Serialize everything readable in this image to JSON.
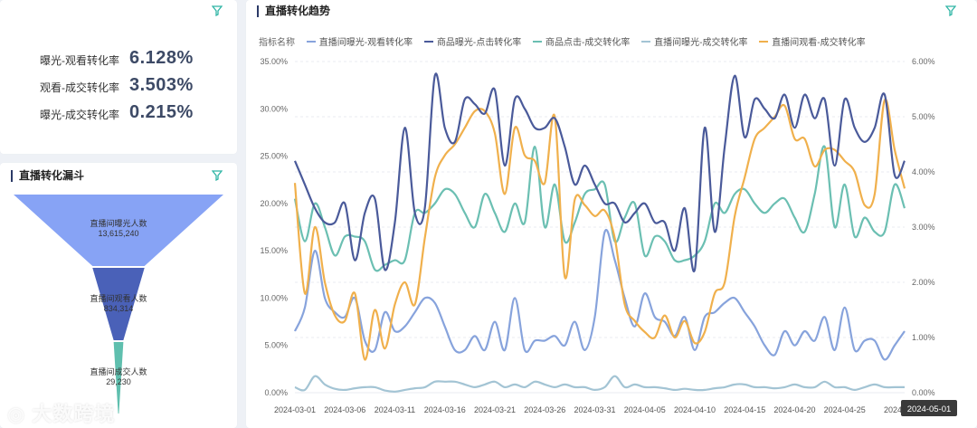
{
  "kpi": {
    "items": [
      {
        "label": "曝光-观看转化率",
        "value": "6.128%"
      },
      {
        "label": "观看-成交转化率",
        "value": "3.503%"
      },
      {
        "label": "曝光-成交转化率",
        "value": "0.215%"
      }
    ]
  },
  "funnel": {
    "title": "直播转化漏斗",
    "stages": [
      {
        "label": "直播间曝光人数",
        "value": "13,615,240",
        "count": 13615240
      },
      {
        "label": "直播间观看人数",
        "value": "834,314",
        "count": 834314
      },
      {
        "label": "直播间成交人数",
        "value": "29,230",
        "count": 29230
      }
    ],
    "colors": [
      "#87a3f5",
      "#4a61b8",
      "#5fbfae"
    ]
  },
  "trend": {
    "title": "直播转化趋势",
    "legend_title": "指标名称"
  },
  "tooltip_date": "2024-05-01",
  "watermark": "大数跨境",
  "chart_data": {
    "type": "line",
    "x": [
      "2024-03-01",
      "2024-03-02",
      "2024-03-03",
      "2024-03-04",
      "2024-03-05",
      "2024-03-06",
      "2024-03-07",
      "2024-03-08",
      "2024-03-09",
      "2024-03-10",
      "2024-03-11",
      "2024-03-12",
      "2024-03-13",
      "2024-03-14",
      "2024-03-15",
      "2024-03-16",
      "2024-03-17",
      "2024-03-18",
      "2024-03-19",
      "2024-03-20",
      "2024-03-21",
      "2024-03-22",
      "2024-03-23",
      "2024-03-24",
      "2024-03-25",
      "2024-03-26",
      "2024-03-27",
      "2024-03-28",
      "2024-03-29",
      "2024-03-30",
      "2024-03-31",
      "2024-04-01",
      "2024-04-02",
      "2024-04-03",
      "2024-04-04",
      "2024-04-05",
      "2024-04-06",
      "2024-04-07",
      "2024-04-08",
      "2024-04-09",
      "2024-04-10",
      "2024-04-11",
      "2024-04-12",
      "2024-04-13",
      "2024-04-14",
      "2024-04-15",
      "2024-04-16",
      "2024-04-17",
      "2024-04-18",
      "2024-04-19",
      "2024-04-20",
      "2024-04-21",
      "2024-04-22",
      "2024-04-23",
      "2024-04-24",
      "2024-04-25",
      "2024-04-26",
      "2024-04-27",
      "2024-04-28",
      "2024-04-29",
      "2024-04-30",
      "2024-05-01"
    ],
    "x_tick_labels": [
      "2024-03-01",
      "2024-03-06",
      "2024-03-11",
      "2024-03-16",
      "2024-03-21",
      "2024-03-26",
      "2024-03-31",
      "2024-04-05",
      "2024-04-10",
      "2024-04-15",
      "2024-04-20",
      "2024-04-25",
      "2024-05-01"
    ],
    "y_left": {
      "min": 0,
      "max": 35,
      "ticks": [
        "0.00%",
        "5.00%",
        "10.00%",
        "15.00%",
        "20.00%",
        "25.00%",
        "30.00%",
        "35.00%"
      ]
    },
    "y_right": {
      "min": 0,
      "max": 6,
      "ticks": [
        "0.00%",
        "1.00%",
        "2.00%",
        "3.00%",
        "4.00%",
        "5.00%",
        "6.00%"
      ]
    },
    "grid": true,
    "legend_position": "top-left",
    "series": [
      {
        "name": "直播间曝光-观看转化率",
        "axis": "left",
        "color": "#87a3dc",
        "values": [
          6.5,
          9,
          15,
          10,
          8.5,
          8,
          10,
          5.5,
          4.5,
          8.5,
          6.5,
          7,
          8.5,
          10,
          9.5,
          7,
          4.5,
          4.5,
          6,
          4.5,
          7.5,
          4.5,
          10,
          4.5,
          5.5,
          5.5,
          6,
          5,
          7.5,
          4.5,
          8,
          17,
          14,
          10,
          7,
          10.5,
          8,
          7.5,
          6,
          8,
          4.5,
          8,
          8.5,
          9.5,
          10,
          8.5,
          7,
          5,
          4,
          6.5,
          5,
          6.5,
          5.5,
          8,
          4.5,
          9,
          4.5,
          5.5,
          5.5,
          3.5,
          5,
          6.5
        ]
      },
      {
        "name": "商品曝光-点击转化率",
        "axis": "left",
        "color": "#4a5a9a",
        "values": [
          24.5,
          22,
          19.5,
          18,
          18,
          20,
          14,
          19,
          20.5,
          13,
          18,
          28,
          19,
          19.5,
          33.5,
          28,
          26.5,
          31,
          30.5,
          29.5,
          32,
          24,
          31,
          30,
          28,
          28,
          29,
          26,
          22,
          24,
          22,
          20,
          20,
          18,
          19,
          20,
          18,
          18,
          15,
          19.5,
          13,
          28,
          17,
          26,
          33.5,
          27,
          31,
          30,
          29,
          31.5,
          28,
          31.5,
          29,
          31,
          24,
          31,
          28,
          26.5,
          28,
          31.5,
          23,
          24.5
        ]
      },
      {
        "name": "商品点击-成交转化率",
        "axis": "left",
        "color": "#6bbfb2",
        "values": [
          20.5,
          16,
          20,
          17.5,
          14.5,
          16.5,
          16.5,
          16,
          13,
          13.5,
          14,
          14,
          19,
          19,
          20,
          21.5,
          21,
          19,
          17.5,
          21,
          19,
          17,
          20,
          18,
          26,
          17.5,
          22,
          16,
          18,
          21,
          21.5,
          22,
          16,
          18.5,
          20,
          14.5,
          16.5,
          16,
          14,
          14,
          14.5,
          16,
          20,
          19,
          21,
          21.5,
          20,
          19,
          20,
          20.5,
          18.5,
          17,
          21,
          26,
          17.5,
          22,
          16.5,
          18.5,
          17,
          17,
          22,
          19.5
        ]
      },
      {
        "name": "直播间曝光-成交转化率",
        "axis": "right",
        "color": "#a3c4d4",
        "values": [
          0.1,
          0.05,
          0.3,
          0.15,
          0.07,
          0.05,
          0.08,
          0.1,
          0.1,
          0.04,
          0.02,
          0.05,
          0.08,
          0.1,
          0.2,
          0.2,
          0.2,
          0.15,
          0.1,
          0.15,
          0.2,
          0.1,
          0.15,
          0.1,
          0.2,
          0.15,
          0.1,
          0.15,
          0.1,
          0.1,
          0.05,
          0.1,
          0.3,
          0.1,
          0.15,
          0.1,
          0.1,
          0.08,
          0.05,
          0.07,
          0.05,
          0.05,
          0.08,
          0.1,
          0.15,
          0.15,
          0.1,
          0.1,
          0.08,
          0.1,
          0.15,
          0.1,
          0.1,
          0.2,
          0.1,
          0.1,
          0.05,
          0.1,
          0.15,
          0.1,
          0.1,
          0.1
        ]
      },
      {
        "name": "直播间观看-成交转化率",
        "axis": "right",
        "color": "#f0b04c",
        "values": [
          3.8,
          1.8,
          3.0,
          2.0,
          1.4,
          1.3,
          1.8,
          0.6,
          1.5,
          0.8,
          1.6,
          2.0,
          1.6,
          2.8,
          3.9,
          4.3,
          4.5,
          4.8,
          5.1,
          5.1,
          4.7,
          3.6,
          4.8,
          4.3,
          4.2,
          3.8,
          5.0,
          2.1,
          3.5,
          3.4,
          3.2,
          3.3,
          2.8,
          1.6,
          1.3,
          1.1,
          1.0,
          1.4,
          1.0,
          1.3,
          0.9,
          1.1,
          1.8,
          2.0,
          3.2,
          3.9,
          4.6,
          4.8,
          5.0,
          5.2,
          4.6,
          4.6,
          4.1,
          4.4,
          4.4,
          4.2,
          4.0,
          3.4,
          3.6,
          5.3,
          4.4,
          3.7
        ]
      }
    ]
  }
}
